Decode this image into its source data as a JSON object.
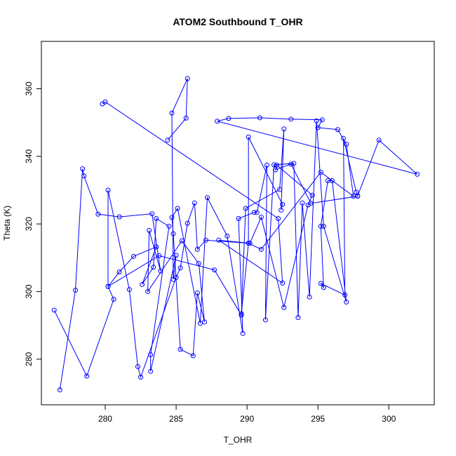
{
  "chart_data": {
    "type": "line",
    "title": "ATOM2 Southbound T_OHR",
    "xlabel": "T_OHR",
    "ylabel": "Theta (K)",
    "xlim": [
      275.5,
      303.2
    ],
    "ylim": [
      266.5,
      374.0
    ],
    "x_ticks": [
      280,
      285,
      290,
      295,
      300
    ],
    "y_ticks": [
      280,
      300,
      320,
      340,
      360
    ],
    "grid": false,
    "color": "#0000ff",
    "series": [
      {
        "marker": "open-circle",
        "points": [
          [
            276.4,
            294.5
          ],
          [
            278.7,
            275.0
          ],
          [
            280.6,
            297.7
          ],
          [
            280.2,
            301.5
          ],
          [
            280.2,
            330.0
          ],
          [
            281.7,
            300.6
          ],
          [
            282.3,
            277.8
          ],
          [
            282.5,
            274.7
          ],
          [
            285.0,
            304.2
          ],
          [
            285.3,
            307.0
          ],
          [
            285.8,
            320.2
          ],
          [
            286.3,
            326.2
          ],
          [
            286.5,
            312.5
          ],
          [
            287.1,
            315.2
          ],
          [
            290.1,
            314.3
          ],
          [
            289.6,
            293.4
          ],
          [
            289.9,
            324.6
          ],
          [
            292.3,
            330.2
          ],
          [
            292.6,
            348.1
          ],
          [
            292.4,
            324.1
          ],
          [
            292.5,
            325.8
          ],
          [
            290.1,
            345.7
          ],
          [
            290.1,
            314.3
          ],
          [
            291.0,
            312.5
          ],
          [
            295.2,
            335.3
          ],
          [
            297.5,
            328.2
          ],
          [
            297.0,
            343.6
          ],
          [
            296.4,
            347.9
          ],
          [
            295.0,
            348.5
          ],
          [
            295.3,
            350.8
          ],
          [
            293.1,
            351.0
          ],
          [
            290.9,
            351.4
          ],
          [
            288.7,
            351.2
          ],
          [
            287.9,
            350.4
          ],
          [
            302.0,
            334.7
          ],
          [
            299.3,
            344.8
          ],
          [
            297.8,
            328.3
          ],
          [
            297.7,
            329.4
          ],
          [
            296.8,
            345.3
          ],
          [
            296.9,
            299.0
          ],
          [
            295.2,
            302.4
          ],
          [
            295.4,
            301.2
          ],
          [
            295.2,
            319.3
          ],
          [
            295.7,
            332.8
          ],
          [
            296.0,
            332.8
          ],
          [
            297.0,
            296.9
          ],
          [
            295.4,
            319.3
          ],
          [
            294.9,
            350.5
          ],
          [
            294.4,
            298.4
          ],
          [
            293.9,
            326.2
          ],
          [
            293.6,
            292.3
          ],
          [
            293.3,
            337.9
          ],
          [
            291.9,
            337.5
          ],
          [
            291.3,
            291.6
          ],
          [
            291.4,
            337.4
          ],
          [
            290.7,
            323.4
          ],
          [
            290.5,
            323.4
          ],
          [
            289.4,
            321.6
          ],
          [
            289.7,
            287.6
          ],
          [
            288.6,
            316.4
          ],
          [
            287.2,
            327.8
          ],
          [
            286.7,
            290.6
          ],
          [
            285.1,
            324.6
          ],
          [
            284.7,
            321.9
          ],
          [
            284.8,
            317.1
          ],
          [
            285.3,
            282.9
          ],
          [
            286.2,
            281.0
          ],
          [
            286.5,
            299.6
          ],
          [
            287.0,
            291.0
          ],
          [
            286.6,
            308.3
          ],
          [
            285.4,
            315.0
          ],
          [
            283.0,
            300.0
          ],
          [
            283.1,
            318.1
          ],
          [
            283.9,
            306.1
          ],
          [
            283.3,
            323.0
          ],
          [
            281.0,
            322.1
          ],
          [
            279.5,
            322.9
          ],
          [
            278.5,
            334.2
          ],
          [
            278.4,
            336.3
          ],
          [
            277.9,
            300.4
          ],
          [
            276.8,
            270.9
          ]
        ]
      },
      {
        "marker": "open-circle",
        "points": [
          [
            284.4,
            344.8
          ],
          [
            285.7,
            351.3
          ],
          [
            285.8,
            363.0
          ],
          [
            284.7,
            352.8
          ],
          [
            284.8,
            303.6
          ],
          [
            285.0,
            310.7
          ],
          [
            283.2,
            276.4
          ],
          [
            283.2,
            281.3
          ],
          [
            284.5,
            319.3
          ],
          [
            283.6,
            321.6
          ],
          [
            283.4,
            307.2
          ],
          [
            282.6,
            302.1
          ],
          [
            283.6,
            313.2
          ],
          [
            282.0,
            310.4
          ],
          [
            281.0,
            305.8
          ],
          [
            280.2,
            301.5
          ],
          [
            283.8,
            310.6
          ],
          [
            287.7,
            306.4
          ],
          [
            289.6,
            293.0
          ]
        ]
      },
      {
        "marker": "open-circle",
        "points": [
          [
            279.8,
            355.5
          ],
          [
            280.0,
            356.1
          ],
          [
            292.2,
            321.6
          ],
          [
            292.5,
            302.5
          ],
          [
            288.0,
            315.2
          ],
          [
            290.2,
            314.3
          ],
          [
            291.0,
            322.0
          ],
          [
            292.6,
            295.3
          ],
          [
            294.3,
            325.6
          ],
          [
            294.6,
            328.5
          ],
          [
            292.1,
            337.4
          ],
          [
            292.0,
            336.0
          ],
          [
            293.1,
            337.7
          ],
          [
            294.5,
            326.1
          ],
          [
            297.8,
            328.2
          ]
        ]
      }
    ]
  }
}
